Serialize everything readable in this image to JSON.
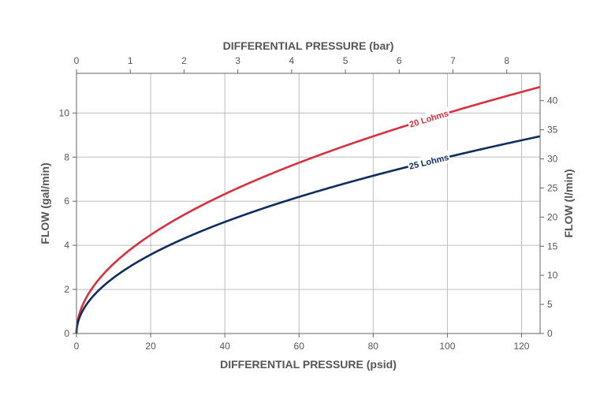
{
  "chart_data": {
    "type": "line",
    "title": "",
    "xlabel": "DIFFERENTIAL PRESSURE (psid)",
    "x2label": "DIFFERENTIAL PRESSURE (bar)",
    "ylabel": "FLOW (gal/min)",
    "y2label": "FLOW (l/min)",
    "xlim": [
      0,
      125
    ],
    "ylim": [
      0,
      11.8
    ],
    "x2lim": [
      0,
      8.62
    ],
    "y2lim": [
      0,
      44.7
    ],
    "x_ticks": [
      0,
      20,
      40,
      60,
      80,
      100,
      120
    ],
    "y_ticks": [
      0,
      2,
      4,
      6,
      8,
      10
    ],
    "x2_ticks": [
      0,
      1,
      2,
      3,
      4,
      5,
      6,
      7,
      8
    ],
    "y2_ticks": [
      0,
      5,
      10,
      15,
      20,
      25,
      30,
      35,
      40
    ],
    "grid": true,
    "legend": "none",
    "colors": {
      "20 Lohms": "#d9303f",
      "25 Lohms": "#0e2d5e"
    },
    "series": [
      {
        "name": "20 Lohms",
        "x": [
          0,
          1,
          5,
          10,
          20,
          30,
          40,
          50,
          60,
          70,
          80,
          90,
          100,
          110,
          120,
          125
        ],
        "y": [
          0,
          1.0,
          2.24,
          3.16,
          4.47,
          5.48,
          6.32,
          7.07,
          7.75,
          8.37,
          8.94,
          9.49,
          10.0,
          10.49,
          10.95,
          11.18
        ]
      },
      {
        "name": "25 Lohms",
        "x": [
          0,
          1,
          5,
          10,
          20,
          30,
          40,
          50,
          60,
          70,
          80,
          90,
          100,
          110,
          120,
          125
        ],
        "y": [
          0,
          0.8,
          1.79,
          2.53,
          3.58,
          4.38,
          5.06,
          5.66,
          6.2,
          6.69,
          7.16,
          7.59,
          8.0,
          8.39,
          8.76,
          8.94
        ]
      }
    ]
  }
}
